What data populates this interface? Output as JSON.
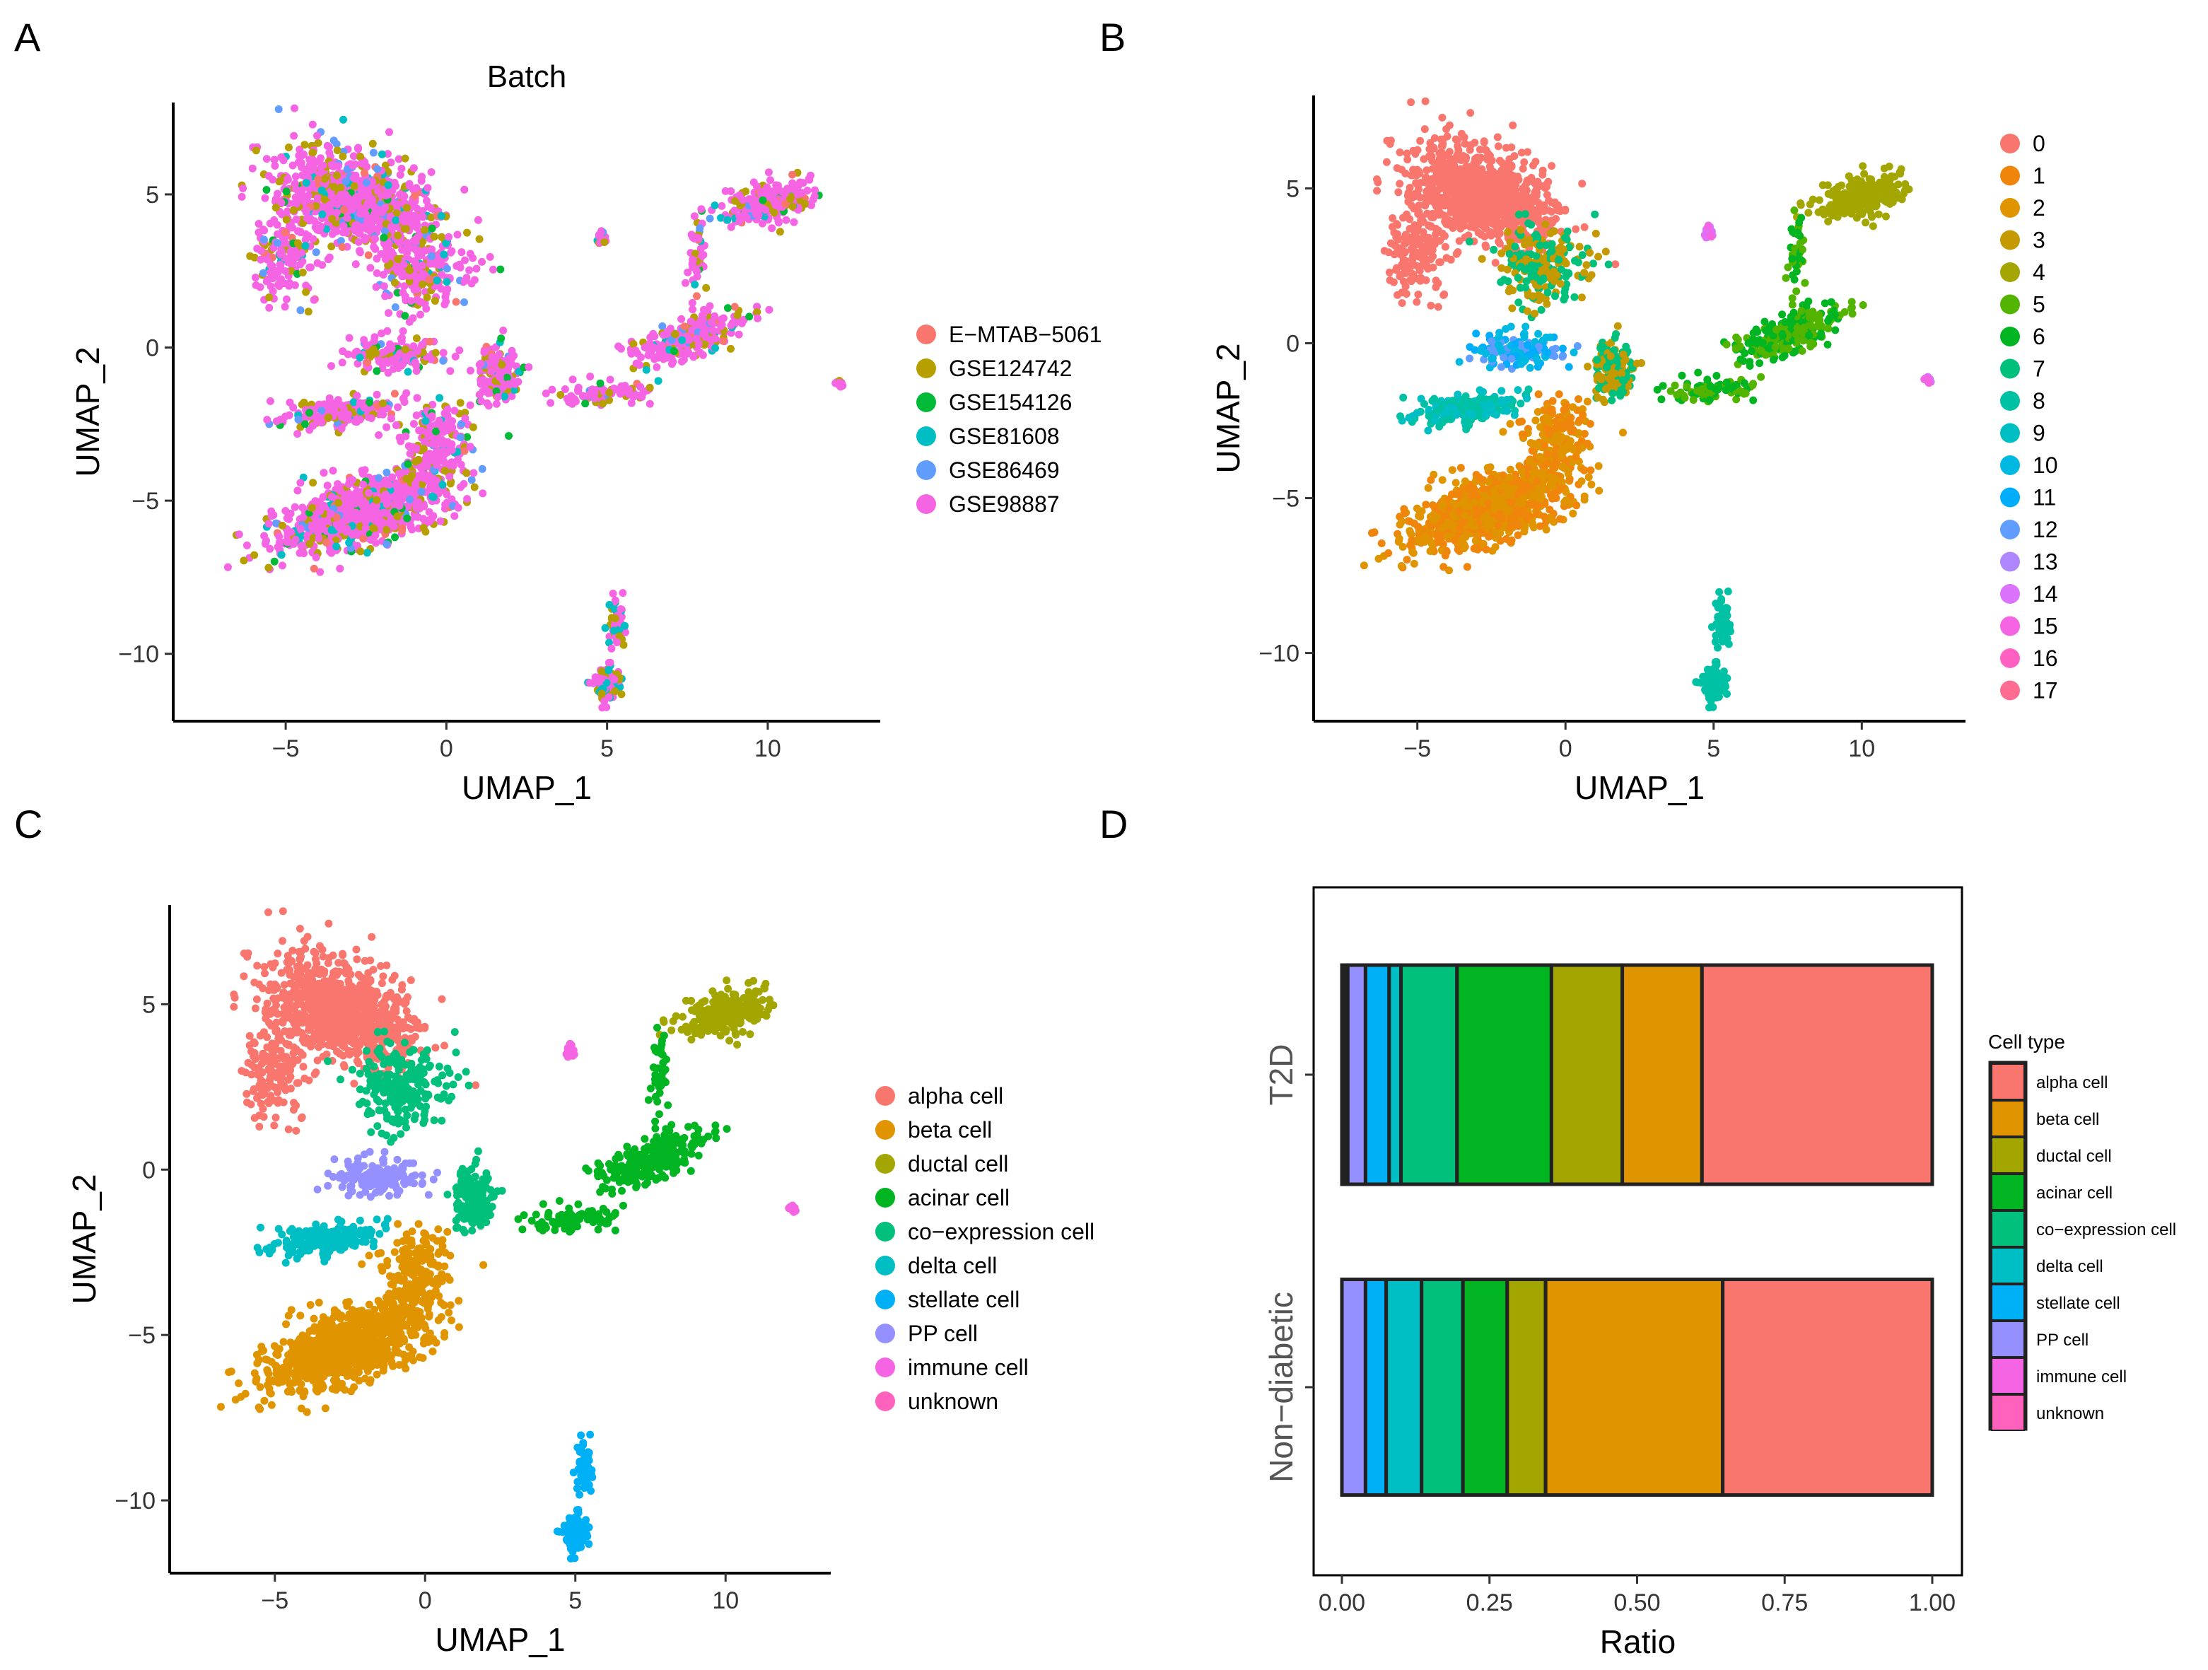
{
  "figure": {
    "panel_labels": [
      "A",
      "B",
      "C",
      "D"
    ]
  },
  "chart_data": [
    {
      "id": "A",
      "type": "scatter",
      "title": "Batch",
      "xlabel": "UMAP_1",
      "ylabel": "UMAP_2",
      "xlim": [
        -8.5,
        13.5
      ],
      "ylim": [
        -12.2,
        8
      ],
      "xticks": [
        -5,
        0,
        5,
        10
      ],
      "yticks": [
        5,
        0,
        -5,
        -10
      ],
      "tick_labels_x": [
        "−5",
        "0",
        "5",
        "10"
      ],
      "tick_labels_y": [
        "5",
        "0",
        "−5",
        "−10"
      ],
      "legend": [
        {
          "label": "E−MTAB−5061",
          "color": "#F8766D"
        },
        {
          "label": "GSE124742",
          "color": "#B79F00"
        },
        {
          "label": "GSE154126",
          "color": "#00BA38"
        },
        {
          "label": "GSE81608",
          "color": "#00BFC4"
        },
        {
          "label": "GSE86469",
          "color": "#619CFF"
        },
        {
          "label": "GSE98887",
          "color": "#F564E3"
        }
      ]
    },
    {
      "id": "B",
      "type": "scatter",
      "title": "",
      "xlabel": "UMAP_1",
      "ylabel": "UMAP_2",
      "xlim": [
        -8.5,
        13.5
      ],
      "ylim": [
        -12.2,
        8
      ],
      "xticks": [
        -5,
        0,
        5,
        10
      ],
      "yticks": [
        5,
        0,
        -5,
        -10
      ],
      "tick_labels_x": [
        "−5",
        "0",
        "5",
        "10"
      ],
      "tick_labels_y": [
        "5",
        "0",
        "−5",
        "−10"
      ],
      "legend": [
        {
          "label": "0",
          "color": "#F8766D"
        },
        {
          "label": "1",
          "color": "#F0850B"
        },
        {
          "label": "2",
          "color": "#E09400"
        },
        {
          "label": "3",
          "color": "#C49A00"
        },
        {
          "label": "4",
          "color": "#A3A500"
        },
        {
          "label": "5",
          "color": "#53B400"
        },
        {
          "label": "6",
          "color": "#00B521"
        },
        {
          "label": "7",
          "color": "#00C07B"
        },
        {
          "label": "8",
          "color": "#00C1A3"
        },
        {
          "label": "9",
          "color": "#00BFC4"
        },
        {
          "label": "10",
          "color": "#00B9E3"
        },
        {
          "label": "11",
          "color": "#00ADFA"
        },
        {
          "label": "12",
          "color": "#619CFF"
        },
        {
          "label": "13",
          "color": "#AE87FF"
        },
        {
          "label": "14",
          "color": "#DB72FB"
        },
        {
          "label": "15",
          "color": "#F564E3"
        },
        {
          "label": "16",
          "color": "#FF61C3"
        },
        {
          "label": "17",
          "color": "#FF6C91"
        }
      ]
    },
    {
      "id": "C",
      "type": "scatter",
      "title": "",
      "xlabel": "UMAP_1",
      "ylabel": "UMAP_2",
      "xlim": [
        -8.5,
        13.5
      ],
      "ylim": [
        -12.2,
        8
      ],
      "xticks": [
        -5,
        0,
        5,
        10
      ],
      "yticks": [
        5,
        0,
        -5,
        -10
      ],
      "tick_labels_x": [
        "−5",
        "0",
        "5",
        "10"
      ],
      "tick_labels_y": [
        "5",
        "0",
        "−5",
        "−10"
      ],
      "legend": [
        {
          "label": "alpha cell",
          "color": "#F8766D"
        },
        {
          "label": "beta cell",
          "color": "#E09400"
        },
        {
          "label": "ductal cell",
          "color": "#A3A500"
        },
        {
          "label": "acinar cell",
          "color": "#00B521"
        },
        {
          "label": "co−expression cell",
          "color": "#00C07B"
        },
        {
          "label": "delta cell",
          "color": "#00BFC4"
        },
        {
          "label": "stellate cell",
          "color": "#00B0F6"
        },
        {
          "label": "PP cell",
          "color": "#9590FF"
        },
        {
          "label": "immune cell",
          "color": "#F564E3"
        },
        {
          "label": "unknown",
          "color": "#FF62BC"
        }
      ]
    },
    {
      "id": "D",
      "type": "bar",
      "orientation": "horizontal",
      "stacked": true,
      "xlabel": "Ratio",
      "ylabel": "",
      "xlim": [
        0,
        1
      ],
      "xticks": [
        0,
        0.25,
        0.5,
        0.75,
        1
      ],
      "tick_labels_x": [
        "0.00",
        "0.25",
        "0.50",
        "0.75",
        "1.00"
      ],
      "categories": [
        "T2D",
        "Non−diabetic"
      ],
      "legend_title": "Cell type",
      "series": [
        {
          "name": "unknown",
          "color": "#FF62BC",
          "values": [
            0.005,
            0.0
          ]
        },
        {
          "name": "immune cell",
          "color": "#F564E3",
          "values": [
            0.005,
            0.0
          ]
        },
        {
          "name": "PP cell",
          "color": "#9590FF",
          "values": [
            0.03,
            0.04
          ]
        },
        {
          "name": "stellate cell",
          "color": "#00B0F6",
          "values": [
            0.04,
            0.035
          ]
        },
        {
          "name": "delta cell",
          "color": "#00BFC4",
          "values": [
            0.02,
            0.06
          ]
        },
        {
          "name": "co−expression cell",
          "color": "#00C07B",
          "values": [
            0.095,
            0.07
          ]
        },
        {
          "name": "acinar cell",
          "color": "#00B521",
          "values": [
            0.16,
            0.075
          ]
        },
        {
          "name": "ductal cell",
          "color": "#A3A500",
          "values": [
            0.12,
            0.065
          ]
        },
        {
          "name": "beta cell",
          "color": "#E09400",
          "values": [
            0.135,
            0.3
          ]
        },
        {
          "name": "alpha cell",
          "color": "#F8766D",
          "values": [
            0.39,
            0.355
          ]
        }
      ],
      "legend_order": [
        "alpha cell",
        "beta cell",
        "ductal cell",
        "acinar cell",
        "co−expression cell",
        "delta cell",
        "stellate cell",
        "PP cell",
        "immune cell",
        "unknown"
      ]
    }
  ]
}
